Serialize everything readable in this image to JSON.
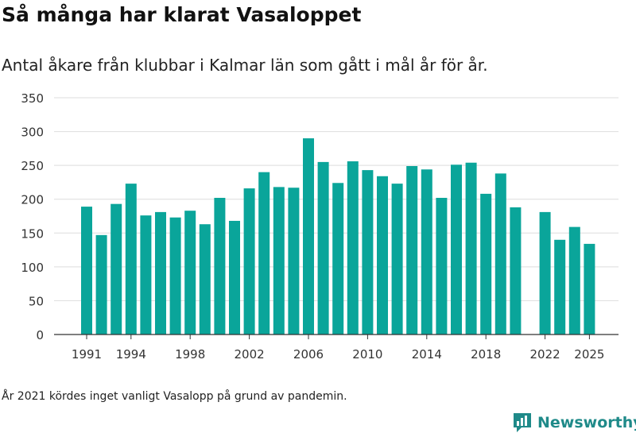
{
  "title": "Så många har klarat Vasaloppet",
  "subtitle": "Antal åkare från klubbar i Kalmar län som gått i mål år för år.",
  "note": "År 2021 kördes inget vanligt Vasalopp på grund av pandemin.",
  "brand": {
    "name": "Newsworthy",
    "icon": "newsworthy-logo-icon"
  },
  "colors": {
    "bar": "#0aa59a",
    "grid": "#dedede",
    "axis": "#333333",
    "text": "#333333",
    "brand": "#1f8a89"
  },
  "chart_data": {
    "type": "bar",
    "title": "Så många har klarat Vasaloppet",
    "subtitle": "Antal åkare från klubbar i Kalmar län som gått i mål år för år.",
    "xlabel": "",
    "ylabel": "",
    "ylim": [
      0,
      350
    ],
    "yticks": [
      0,
      50,
      100,
      150,
      200,
      250,
      300,
      350
    ],
    "xticks": [
      1991,
      1994,
      1998,
      2002,
      2006,
      2010,
      2014,
      2018,
      2022,
      2025
    ],
    "grid": true,
    "categories": [
      1991,
      1992,
      1993,
      1994,
      1995,
      1996,
      1997,
      1998,
      1999,
      2000,
      2001,
      2002,
      2003,
      2004,
      2005,
      2006,
      2007,
      2008,
      2009,
      2010,
      2011,
      2012,
      2013,
      2014,
      2015,
      2016,
      2017,
      2018,
      2019,
      2020,
      2021,
      2022,
      2023,
      2024,
      2025
    ],
    "values": [
      189,
      147,
      193,
      223,
      176,
      181,
      173,
      183,
      163,
      202,
      168,
      216,
      240,
      218,
      217,
      290,
      255,
      224,
      256,
      243,
      234,
      223,
      249,
      244,
      202,
      251,
      254,
      208,
      238,
      188,
      null,
      181,
      140,
      159,
      134
    ]
  }
}
